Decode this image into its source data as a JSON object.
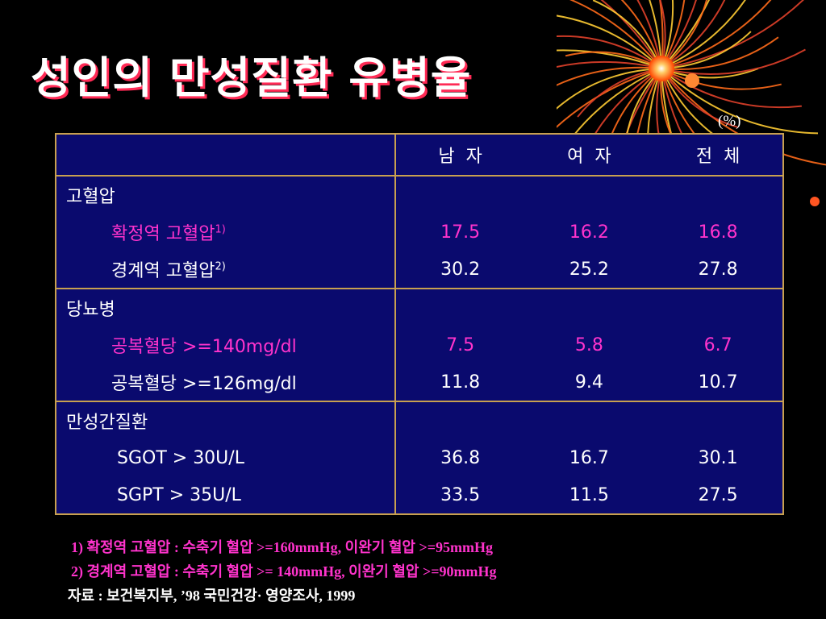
{
  "title": "성인의 만성질환 유병율",
  "unit": "(%)",
  "table": {
    "headers": [
      "",
      "남  자",
      "여  자",
      "전  체"
    ],
    "groups": [
      {
        "name": "고혈압",
        "rows": [
          {
            "label": "확정역 고혈압",
            "sup": "1)",
            "values": [
              "17.5",
              "16.2",
              "16.8"
            ],
            "highlight": true
          },
          {
            "label": "경계역 고혈압",
            "sup": "2)",
            "values": [
              "30.2",
              "25.2",
              "27.8"
            ],
            "highlight": false
          }
        ]
      },
      {
        "name": "당뇨병",
        "rows": [
          {
            "label": "공복혈당 >=140mg/dl",
            "sup": "",
            "values": [
              "7.5",
              "5.8",
              "6.7"
            ],
            "highlight": true
          },
          {
            "label": "공복혈당 >=126mg/dl",
            "sup": "",
            "values": [
              "11.8",
              "9.4",
              "10.7"
            ],
            "highlight": false
          }
        ]
      },
      {
        "name": "만성간질환",
        "rows": [
          {
            "label": "SGOT > 30U/L",
            "sup": "",
            "values": [
              "36.8",
              "16.7",
              "30.1"
            ],
            "highlight": false
          },
          {
            "label": "SGPT > 35U/L",
            "sup": "",
            "values": [
              "33.5",
              "11.5",
              "27.5"
            ],
            "highlight": false
          }
        ]
      }
    ]
  },
  "notes": [
    "1) 확정역 고혈압 : 수축기 혈압 >=160mmHg,  이완기 혈압 >=95mmHg",
    "2) 경계역 고혈압 : 수축기 혈압 >= 140mmHg, 이완기 혈압 >=90mmHg"
  ],
  "source": "자료 : 보건복지부, ’98 국민건강·  영양조사, 1999",
  "colors": {
    "background": "#000000",
    "table_bg": "#0a0a6e",
    "border": "#c8a050",
    "highlight": "#ff33cc",
    "title_shadow": "#ff2a55"
  },
  "decoration": "fireworks-image"
}
